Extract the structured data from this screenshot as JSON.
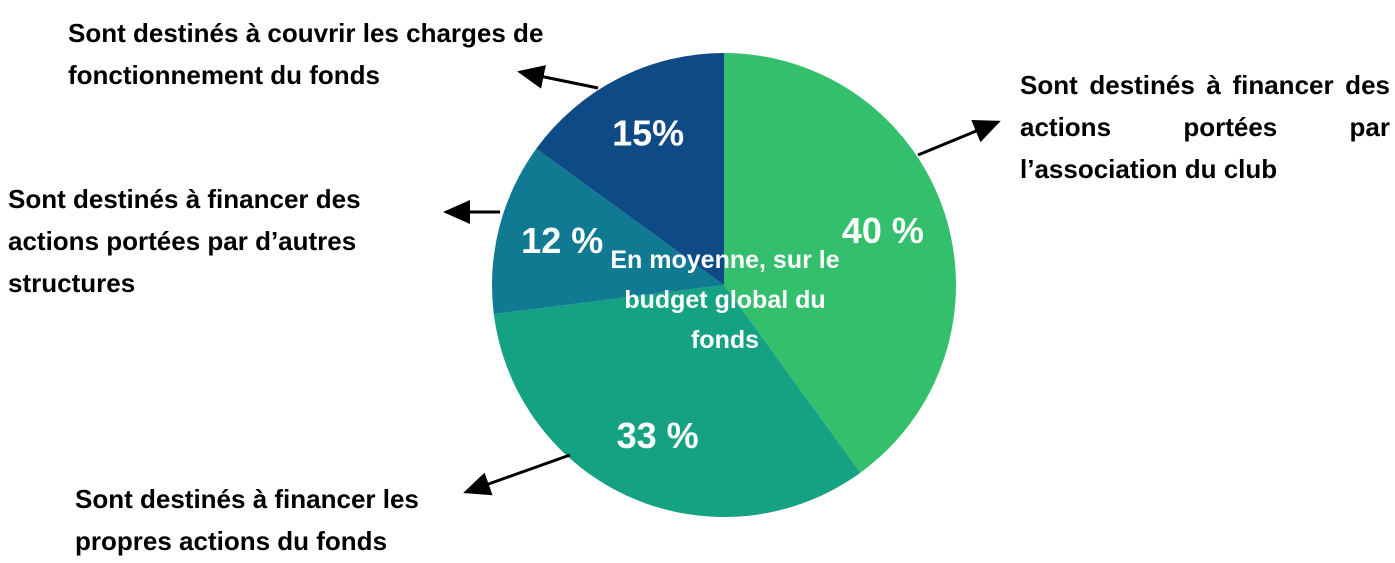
{
  "chart_data": {
    "type": "pie",
    "categories": [
      "Sont destinés à financer des actions portées par l’association du club",
      "Sont destinés à financer les propres actions du fonds",
      "Sont destinés à financer des actions portées par d’autres structures",
      "Sont destinés à couvrir les charges de fonctionnement du fonds"
    ],
    "values": [
      40,
      33,
      12,
      15
    ],
    "value_labels": [
      "40 %",
      "33 %",
      "12 %",
      "15%"
    ],
    "colors": [
      "#33bf6b",
      "#14a283",
      "#0f7a92",
      "#0d4a86"
    ],
    "annotation": "En moyenne, sur le budget global du fonds"
  }
}
